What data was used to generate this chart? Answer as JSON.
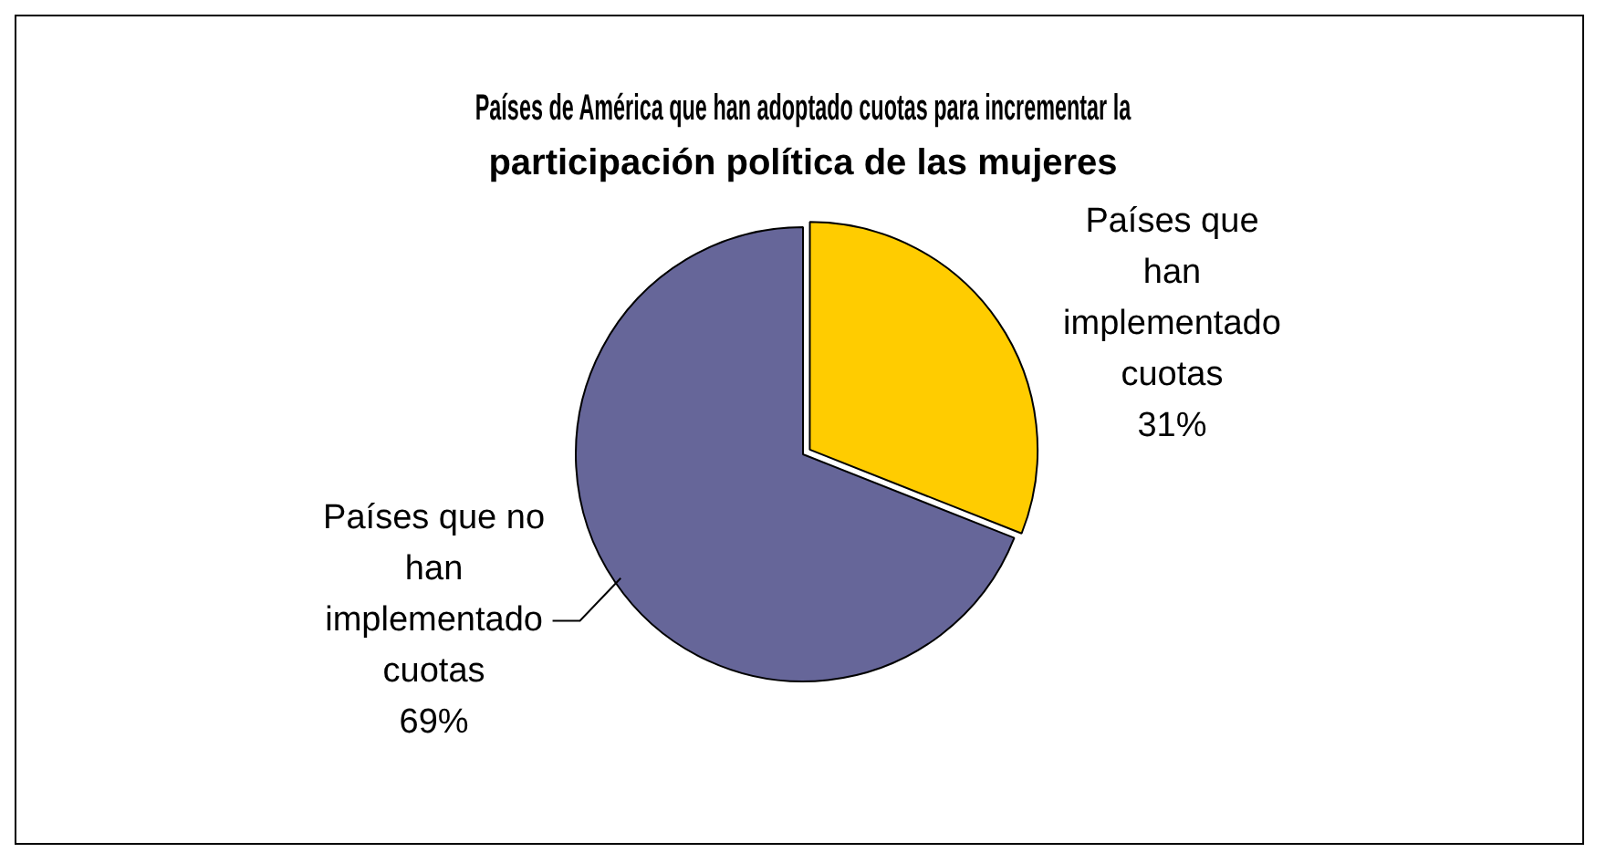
{
  "chart_data": {
    "type": "pie",
    "title": "Países de América que han adoptado cuotas para incrementar la participación política de las mujeres",
    "categories": [
      "Países que han implementado cuotas",
      "Países que no han implementado cuotas"
    ],
    "values": [
      31,
      69
    ],
    "colors": [
      "#ffcc00",
      "#666699"
    ],
    "value_labels": [
      "31%",
      "69%"
    ],
    "legend": false
  }
}
